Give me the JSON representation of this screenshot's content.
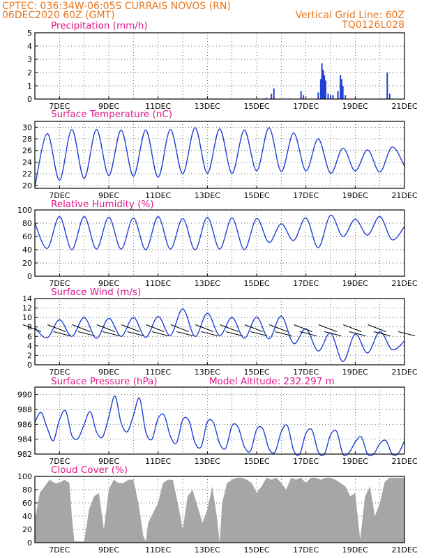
{
  "header": {
    "line1": "CPTEC:   036:34W-06:05S   CURRAIS NOVOS (RN)",
    "line2_left": "06DEC2020 60Z (GMT)",
    "line2_right": "Vertical Grid Line: 60Z",
    "line3_right": "TQ0126L028"
  },
  "colors": {
    "header": "#e8761e",
    "title": "#e0188c",
    "line": "#1f3fd6",
    "cloud": "#a6a6a6",
    "grid": "#333333"
  },
  "x_axis": {
    "ticks": [
      "7DEC",
      "9DEC",
      "11DEC",
      "13DEC",
      "15DEC",
      "17DEC",
      "19DEC",
      "21DEC"
    ],
    "tick_days": [
      7,
      9,
      11,
      13,
      15,
      17,
      19,
      21
    ],
    "range_days": [
      6,
      21
    ]
  },
  "panels": {
    "precip": {
      "title": "Precipitation (mm/h)",
      "yticks": [
        "0",
        "1",
        "2",
        "3",
        "4",
        "5"
      ]
    },
    "temp": {
      "title": "Surface Temperature (nC)",
      "yticks": [
        "20",
        "22",
        "24",
        "26",
        "28",
        "30"
      ]
    },
    "rh": {
      "title": "Relative Humidity (%)",
      "yticks": [
        "0",
        "20",
        "40",
        "60",
        "80",
        "100"
      ]
    },
    "wind": {
      "title": "Surface Wind (m/s)",
      "yticks": [
        "0",
        "2",
        "4",
        "6",
        "8",
        "10",
        "12",
        "14"
      ]
    },
    "pressure": {
      "title": "Surface Pressure (hPa)",
      "extra": "Model Altitude: 232.297 m",
      "yticks": [
        "982",
        "984",
        "986",
        "988",
        "990"
      ]
    },
    "cloud": {
      "title": "Cloud Cover (%)",
      "yticks": [
        "0",
        "20",
        "40",
        "60",
        "80",
        "100"
      ]
    }
  },
  "chart_data": [
    {
      "type": "bar",
      "title": "Precipitation (mm/h)",
      "ylim": [
        0,
        5
      ],
      "x_unit": "day of Dec 2020",
      "x": [
        15.4,
        15.6,
        15.7,
        16.8,
        16.9,
        17.5,
        17.6,
        17.65,
        17.7,
        17.75,
        17.8,
        17.9,
        18.0,
        18.1,
        18.3,
        18.4,
        18.45,
        18.5,
        18.6,
        20.3,
        20.4
      ],
      "values": [
        0.1,
        0.4,
        0.8,
        0.6,
        0.3,
        0.5,
        1.5,
        2.7,
        2.2,
        1.8,
        1.4,
        0.4,
        0.3,
        0.3,
        0.6,
        1.8,
        1.5,
        1.0,
        0.3,
        2.0,
        0.4
      ]
    },
    {
      "type": "line",
      "title": "Surface Temperature (nC)",
      "ylim": [
        19.5,
        31
      ],
      "x_unit": "day of Dec 2020",
      "x_start": 6,
      "x_step": 0.5,
      "values": [
        19.8,
        28.9,
        20.9,
        29.6,
        21.2,
        29.6,
        21.7,
        29.5,
        21.6,
        29.5,
        21.4,
        29.6,
        22.0,
        29.9,
        22.1,
        29.7,
        22.1,
        29.5,
        22.5,
        29.9,
        22.4,
        29.0,
        22.5,
        28.0,
        22.1,
        26.4,
        22.5,
        26.1,
        22.3,
        26.6,
        23.3
      ]
    },
    {
      "type": "line",
      "title": "Relative Humidity (%)",
      "ylim": [
        0,
        100
      ],
      "x_unit": "day of Dec 2020",
      "x_start": 6,
      "x_step": 0.5,
      "values": [
        80,
        42,
        90,
        40,
        90,
        41,
        89,
        41,
        88,
        40,
        90,
        41,
        87,
        40,
        89,
        41,
        88,
        40,
        87,
        51,
        79,
        54,
        88,
        43,
        92,
        60,
        86,
        62,
        90,
        55,
        75
      ]
    },
    {
      "type": "line",
      "title": "Surface Wind (m/s)",
      "ylim": [
        0,
        14
      ],
      "x_unit": "day of Dec 2020",
      "x_start": 6,
      "x_step": 0.5,
      "values": [
        7.8,
        5.7,
        9.5,
        6.0,
        10.0,
        5.6,
        9.8,
        6.0,
        10.0,
        5.8,
        10.2,
        6.2,
        11.8,
        6.0,
        10.9,
        6.2,
        10.0,
        5.6,
        10.1,
        5.5,
        10.3,
        4.5,
        7.6,
        2.9,
        6.7,
        0.7,
        6.5,
        2.5,
        7.0,
        3.2,
        5.0
      ]
    },
    {
      "type": "line",
      "title": "Surface Pressure (hPa)",
      "ylim": [
        982,
        991
      ],
      "x_unit": "day of Dec 2020",
      "x_start": 6,
      "x_step": 0.25,
      "values": [
        986.3,
        987.6,
        985.5,
        983.8,
        986.6,
        987.8,
        984.5,
        984.1,
        986.0,
        987.7,
        985.0,
        984.3,
        987.0,
        989.8,
        986.2,
        985.0,
        987.2,
        989.5,
        985.0,
        984.0,
        986.8,
        987.2,
        984.4,
        983.5,
        986.6,
        986.5,
        983.5,
        983.0,
        986.3,
        986.2,
        983.4,
        982.8,
        985.8,
        985.6,
        983.0,
        982.4,
        985.3,
        985.4,
        982.7,
        982.3,
        985.0,
        985.8,
        982.5,
        982.0,
        984.8,
        985.2,
        982.3,
        982.0,
        984.6,
        985.0,
        982.0,
        982.2,
        983.6,
        984.3,
        982.0,
        982.0,
        983.4,
        983.8,
        982.0,
        982.1,
        983.8
      ]
    },
    {
      "type": "area",
      "title": "Cloud Cover (%)",
      "ylim": [
        0,
        100
      ],
      "x_unit": "day of Dec 2020",
      "x": [
        6.0,
        6.2,
        6.4,
        6.6,
        6.8,
        7.0,
        7.2,
        7.4,
        7.5,
        7.6,
        7.8,
        8.0,
        8.2,
        8.4,
        8.6,
        8.8,
        9.0,
        9.2,
        9.4,
        9.6,
        9.8,
        10.0,
        10.2,
        10.4,
        10.5,
        10.6,
        10.8,
        11.0,
        11.2,
        11.4,
        11.6,
        11.8,
        12.0,
        12.2,
        12.4,
        12.6,
        12.8,
        13.0,
        13.2,
        13.4,
        13.5,
        13.6,
        13.8,
        14.0,
        14.2,
        14.4,
        14.6,
        14.8,
        15.0,
        15.2,
        15.4,
        15.6,
        15.8,
        16.0,
        16.2,
        16.4,
        16.6,
        16.8,
        17.0,
        17.2,
        17.4,
        17.6,
        17.8,
        18.0,
        18.2,
        18.4,
        18.6,
        18.8,
        19.0,
        19.2,
        19.4,
        19.6,
        19.8,
        20.0,
        20.2,
        20.4,
        20.6,
        20.8,
        21.0
      ],
      "values": [
        35,
        75,
        85,
        95,
        90,
        90,
        95,
        90,
        40,
        2,
        2,
        2,
        50,
        70,
        75,
        20,
        80,
        95,
        90,
        90,
        95,
        95,
        60,
        10,
        2,
        30,
        45,
        60,
        90,
        95,
        95,
        60,
        20,
        70,
        80,
        55,
        30,
        50,
        85,
        35,
        0,
        60,
        90,
        95,
        98,
        98,
        95,
        90,
        75,
        85,
        98,
        95,
        98,
        90,
        80,
        98,
        95,
        98,
        90,
        98,
        98,
        95,
        98,
        98,
        95,
        90,
        85,
        70,
        75,
        5,
        70,
        85,
        40,
        60,
        92,
        98,
        98,
        98,
        98
      ]
    }
  ]
}
